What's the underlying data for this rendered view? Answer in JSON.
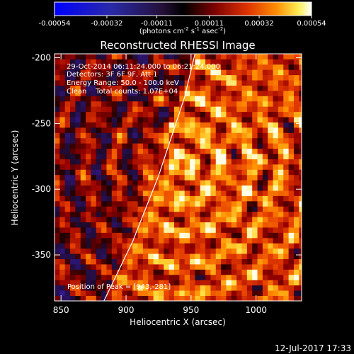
{
  "chart_data": {
    "type": "heatmap",
    "title": "Reconstructed RHESSI Image",
    "xlabel": "Heliocentric X (arcsec)",
    "ylabel": "Heliocentric Y (arcsec)",
    "xlim": [
      845,
      1035
    ],
    "ylim": [
      -385,
      -197
    ],
    "xticks": [
      850,
      900,
      950,
      1000
    ],
    "yticks": [
      -200,
      -250,
      -300,
      -350
    ],
    "colorbar": {
      "colormap": "hot-with-blue-negatives",
      "tick_labels": [
        "-0.00054",
        "-0.00032",
        "-0.00011",
        "0.00011",
        "0.00032",
        "0.00054"
      ],
      "tick_values": [
        -0.00054,
        -0.00032,
        -0.00011,
        0.00011,
        0.00032,
        0.00054
      ],
      "unit_parts": [
        "(photons cm",
        "-2",
        " s",
        "-1",
        " asec",
        "-2",
        ")"
      ]
    },
    "annotations": [
      "29-Oct-2014 06:11:24.000 to 06:21:24.000",
      "Detectors: 3F 6F 9F, Att 1",
      "Energy Range: 50.0 - 100.0 keV",
      "Clean    Total counts: 1.07E+04"
    ],
    "peak_label": "Position of Peak = [943,-281]",
    "peak": [
      943,
      -281
    ],
    "limb": [
      [
        883,
        -385
      ],
      [
        905,
        -340
      ],
      [
        925,
        -290
      ],
      [
        945,
        -230
      ],
      [
        953,
        -197
      ]
    ],
    "pixel_size_arcsec": 4
  },
  "timestamp": "12-Jul-2017 17:33",
  "colors": {
    "background": "#000000",
    "axes": "#ffffff",
    "text": "#ffffff",
    "limb": "#ffffff"
  }
}
